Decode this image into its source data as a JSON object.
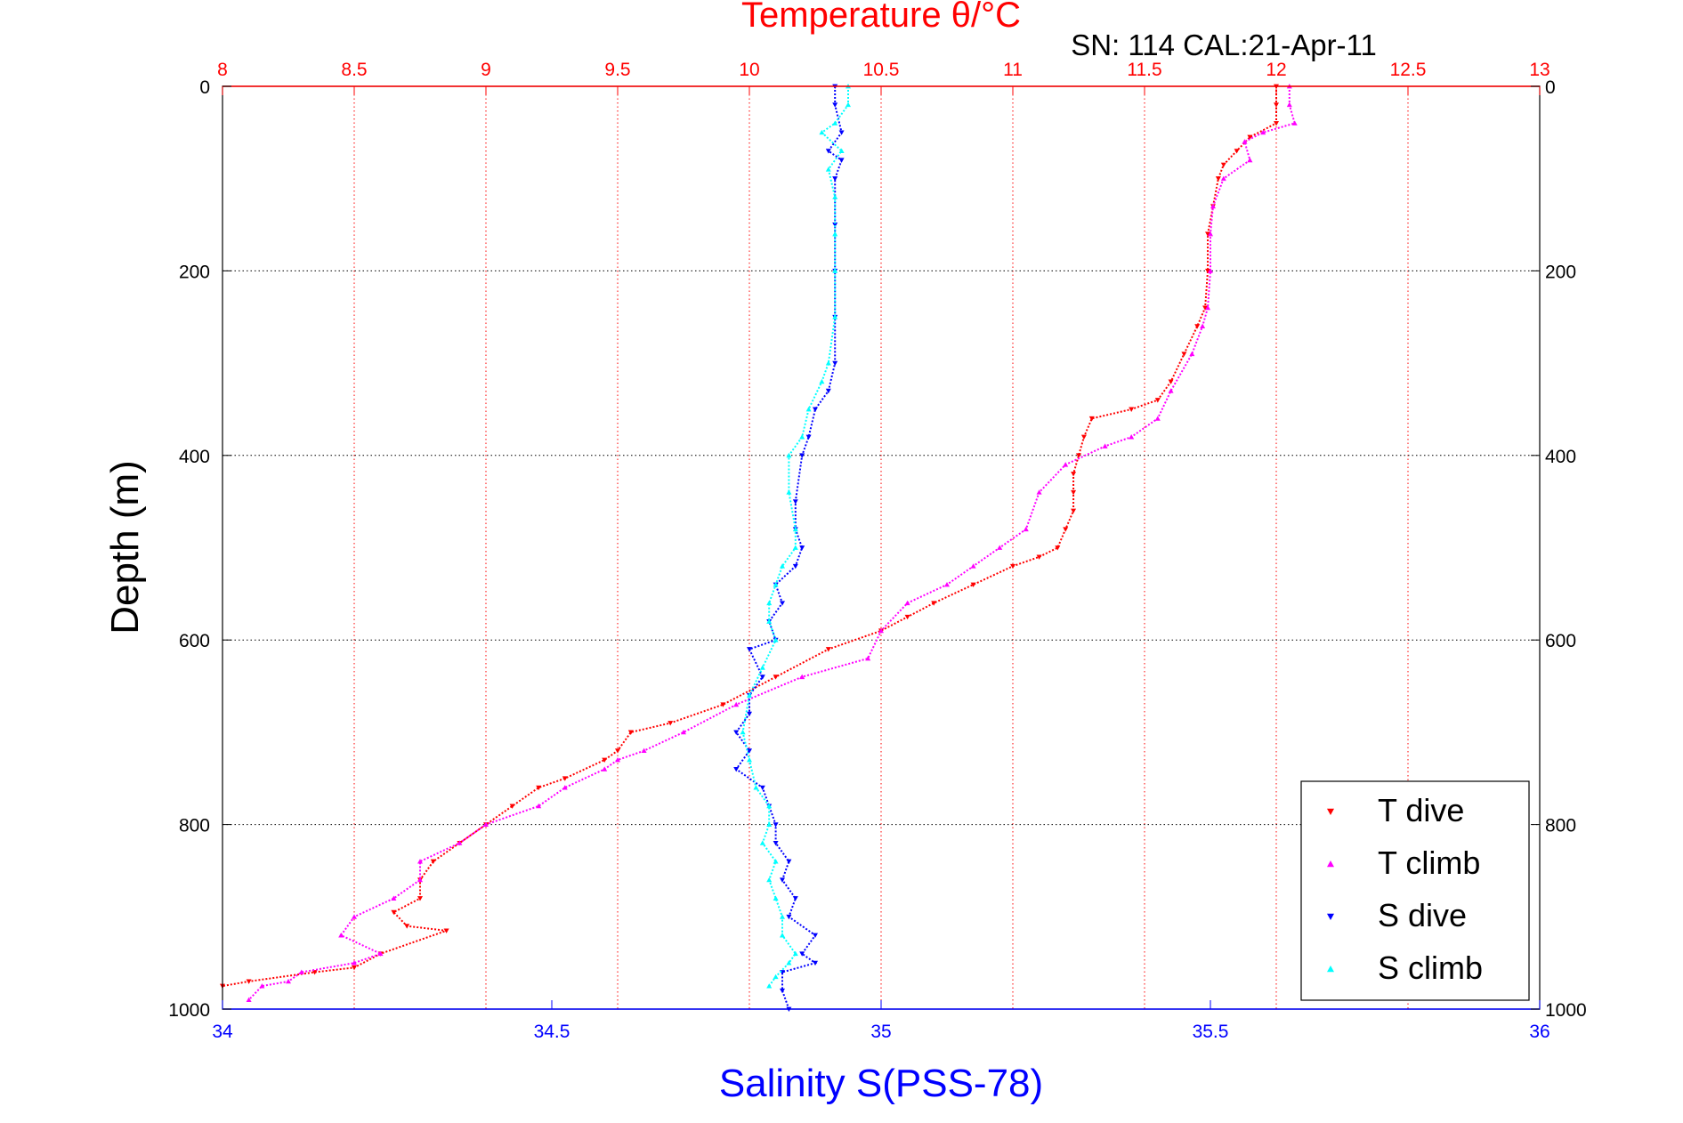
{
  "chart_data": {
    "type": "scatter",
    "title": "Temperature θ/°C",
    "subtitle": "SN: 114  CAL:21-Apr-11",
    "xlabel": "Salinity S(PSS-78)",
    "ylabel": "Depth (m)",
    "x_top_label": "Temperature θ/°C",
    "xlim_salinity": [
      34,
      36
    ],
    "xlim_temperature": [
      8,
      13
    ],
    "ylim_depth": [
      1000,
      0
    ],
    "y_reversed": true,
    "grid": true,
    "legend_position": "bottom-right",
    "x_ticks_salinity": [
      "34",
      "34.5",
      "35",
      "35.5",
      "36"
    ],
    "x_ticks_temperature": [
      "8",
      "8.5",
      "9",
      "9.5",
      "10",
      "10.5",
      "11",
      "11.5",
      "12",
      "12.5",
      "13"
    ],
    "y_ticks": [
      "0",
      "200",
      "400",
      "600",
      "800",
      "1000"
    ],
    "colors": {
      "temperature": "#ff0000",
      "salinity": "#0000ff",
      "grid_temperature": "#ff0000",
      "grid_depth": "#000000"
    },
    "series": [
      {
        "name": "T dive",
        "color": "#ff0000",
        "marker": "triangle-down",
        "axis": "temperature",
        "points": [
          [
            12.0,
            0
          ],
          [
            12.0,
            20
          ],
          [
            12.0,
            40
          ],
          [
            11.9,
            55
          ],
          [
            11.85,
            70
          ],
          [
            11.8,
            85
          ],
          [
            11.78,
            100
          ],
          [
            11.76,
            130
          ],
          [
            11.74,
            160
          ],
          [
            11.74,
            200
          ],
          [
            11.73,
            240
          ],
          [
            11.7,
            260
          ],
          [
            11.65,
            290
          ],
          [
            11.6,
            320
          ],
          [
            11.55,
            340
          ],
          [
            11.45,
            350
          ],
          [
            11.3,
            360
          ],
          [
            11.27,
            380
          ],
          [
            11.25,
            400
          ],
          [
            11.23,
            420
          ],
          [
            11.23,
            440
          ],
          [
            11.23,
            460
          ],
          [
            11.2,
            480
          ],
          [
            11.17,
            500
          ],
          [
            11.1,
            510
          ],
          [
            11.0,
            520
          ],
          [
            10.85,
            540
          ],
          [
            10.7,
            560
          ],
          [
            10.6,
            575
          ],
          [
            10.5,
            590
          ],
          [
            10.3,
            610
          ],
          [
            10.1,
            640
          ],
          [
            9.9,
            670
          ],
          [
            9.7,
            690
          ],
          [
            9.55,
            700
          ],
          [
            9.5,
            720
          ],
          [
            9.45,
            730
          ],
          [
            9.3,
            750
          ],
          [
            9.2,
            760
          ],
          [
            9.1,
            780
          ],
          [
            9.0,
            800
          ],
          [
            8.9,
            820
          ],
          [
            8.8,
            840
          ],
          [
            8.75,
            860
          ],
          [
            8.75,
            880
          ],
          [
            8.65,
            895
          ],
          [
            8.7,
            910
          ],
          [
            8.85,
            915
          ],
          [
            8.6,
            940
          ],
          [
            8.5,
            955
          ],
          [
            8.35,
            960
          ],
          [
            8.1,
            970
          ],
          [
            8.0,
            975
          ]
        ]
      },
      {
        "name": "T climb",
        "color": "#ff00ff",
        "marker": "triangle-up",
        "axis": "temperature",
        "points": [
          [
            12.05,
            0
          ],
          [
            12.05,
            20
          ],
          [
            12.07,
            40
          ],
          [
            11.95,
            50
          ],
          [
            11.88,
            60
          ],
          [
            11.9,
            80
          ],
          [
            11.8,
            100
          ],
          [
            11.76,
            130
          ],
          [
            11.75,
            160
          ],
          [
            11.75,
            200
          ],
          [
            11.74,
            240
          ],
          [
            11.72,
            260
          ],
          [
            11.68,
            290
          ],
          [
            11.6,
            330
          ],
          [
            11.55,
            360
          ],
          [
            11.45,
            380
          ],
          [
            11.35,
            390
          ],
          [
            11.2,
            410
          ],
          [
            11.1,
            440
          ],
          [
            11.05,
            480
          ],
          [
            10.95,
            500
          ],
          [
            10.85,
            520
          ],
          [
            10.75,
            540
          ],
          [
            10.6,
            560
          ],
          [
            10.5,
            590
          ],
          [
            10.45,
            620
          ],
          [
            10.2,
            640
          ],
          [
            9.95,
            670
          ],
          [
            9.75,
            700
          ],
          [
            9.6,
            720
          ],
          [
            9.5,
            730
          ],
          [
            9.45,
            740
          ],
          [
            9.3,
            760
          ],
          [
            9.2,
            780
          ],
          [
            9.0,
            800
          ],
          [
            8.9,
            820
          ],
          [
            8.75,
            840
          ],
          [
            8.75,
            860
          ],
          [
            8.65,
            880
          ],
          [
            8.5,
            900
          ],
          [
            8.45,
            920
          ],
          [
            8.6,
            940
          ],
          [
            8.5,
            950
          ],
          [
            8.3,
            960
          ],
          [
            8.25,
            970
          ],
          [
            8.15,
            975
          ],
          [
            8.1,
            990
          ]
        ]
      },
      {
        "name": "S dive",
        "color": "#0000ff",
        "marker": "triangle-down",
        "axis": "salinity",
        "points": [
          [
            34.93,
            0
          ],
          [
            34.93,
            20
          ],
          [
            34.94,
            50
          ],
          [
            34.92,
            70
          ],
          [
            34.94,
            80
          ],
          [
            34.93,
            100
          ],
          [
            34.93,
            150
          ],
          [
            34.93,
            200
          ],
          [
            34.93,
            250
          ],
          [
            34.93,
            300
          ],
          [
            34.92,
            330
          ],
          [
            34.9,
            350
          ],
          [
            34.89,
            380
          ],
          [
            34.88,
            400
          ],
          [
            34.87,
            450
          ],
          [
            34.87,
            480
          ],
          [
            34.88,
            500
          ],
          [
            34.87,
            520
          ],
          [
            34.84,
            540
          ],
          [
            34.85,
            560
          ],
          [
            34.83,
            580
          ],
          [
            34.84,
            600
          ],
          [
            34.8,
            610
          ],
          [
            34.82,
            640
          ],
          [
            34.8,
            660
          ],
          [
            34.8,
            680
          ],
          [
            34.78,
            700
          ],
          [
            34.8,
            720
          ],
          [
            34.78,
            740
          ],
          [
            34.82,
            760
          ],
          [
            34.83,
            780
          ],
          [
            34.84,
            800
          ],
          [
            34.84,
            820
          ],
          [
            34.86,
            840
          ],
          [
            34.85,
            860
          ],
          [
            34.87,
            880
          ],
          [
            34.86,
            900
          ],
          [
            34.9,
            920
          ],
          [
            34.88,
            940
          ],
          [
            34.9,
            950
          ],
          [
            34.85,
            960
          ],
          [
            34.85,
            980
          ],
          [
            34.86,
            1000
          ]
        ]
      },
      {
        "name": "S climb",
        "color": "#00ffff",
        "marker": "triangle-up",
        "axis": "salinity",
        "points": [
          [
            34.95,
            0
          ],
          [
            34.95,
            20
          ],
          [
            34.93,
            40
          ],
          [
            34.91,
            50
          ],
          [
            34.94,
            70
          ],
          [
            34.92,
            90
          ],
          [
            34.93,
            120
          ],
          [
            34.93,
            160
          ],
          [
            34.93,
            200
          ],
          [
            34.93,
            250
          ],
          [
            34.92,
            300
          ],
          [
            34.91,
            320
          ],
          [
            34.89,
            350
          ],
          [
            34.88,
            380
          ],
          [
            34.86,
            400
          ],
          [
            34.86,
            440
          ],
          [
            34.87,
            480
          ],
          [
            34.87,
            500
          ],
          [
            34.85,
            520
          ],
          [
            34.84,
            540
          ],
          [
            34.83,
            560
          ],
          [
            34.83,
            580
          ],
          [
            34.84,
            600
          ],
          [
            34.82,
            630
          ],
          [
            34.8,
            660
          ],
          [
            34.79,
            700
          ],
          [
            34.8,
            730
          ],
          [
            34.81,
            760
          ],
          [
            34.83,
            780
          ],
          [
            34.83,
            800
          ],
          [
            34.82,
            820
          ],
          [
            34.84,
            840
          ],
          [
            34.83,
            860
          ],
          [
            34.84,
            880
          ],
          [
            34.85,
            900
          ],
          [
            34.85,
            920
          ],
          [
            34.87,
            940
          ],
          [
            34.86,
            950
          ],
          [
            34.84,
            965
          ],
          [
            34.83,
            975
          ]
        ]
      }
    ]
  }
}
